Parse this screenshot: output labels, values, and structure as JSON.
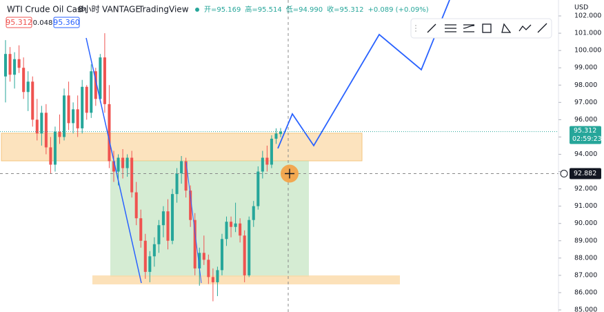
{
  "chart_data": {
    "type": "candlestick",
    "symbol": "WTI Crude Oil Cash",
    "interval": "8小时",
    "broker": "VANTAGE",
    "platform": "TradingView",
    "ohlc_text": [
      "开=95.169",
      "高=95.514",
      "低=94.990",
      "收=95.312",
      "+0.089 (+0.09%)"
    ],
    "bid": "95.312",
    "spread": "0.048",
    "ask": "95.360",
    "currency": "USD",
    "countdown": "02:59:23",
    "last_price": 95.312,
    "crosshair_price": 92.882,
    "up_color": "#26a69a",
    "down_color": "#ef5350",
    "open": [
      98.5,
      99.8,
      98.6,
      99.5,
      99.0,
      97.6,
      98.2,
      96.0,
      95.2,
      96.4,
      94.4,
      93.4,
      95.3,
      95.0,
      97.4,
      95.8,
      96.6,
      95.5,
      97.9,
      96.4,
      98.8,
      97.2,
      99.6,
      96.9,
      93.6,
      93.0,
      93.8,
      93.2,
      93.8,
      91.8,
      90.3,
      89.0,
      87.2,
      88.1,
      88.8,
      89.9,
      90.7,
      89.0,
      91.7,
      92.9,
      93.6,
      91.9,
      90.2,
      87.4,
      88.3,
      87.9,
      86.9,
      86.6,
      87.3,
      89.1,
      90.1,
      89.8,
      90.0,
      89.3,
      87.0,
      90.2,
      91.0,
      93.0,
      93.8,
      93.4,
      94.9,
      95.169
    ],
    "high": [
      100.6,
      100.2,
      99.9,
      100.3,
      99.6,
      98.8,
      98.5,
      97.2,
      96.8,
      96.9,
      95.0,
      95.6,
      96.3,
      97.8,
      98.2,
      97.0,
      97.4,
      98.3,
      98.0,
      99.2,
      99.0,
      99.8,
      101.0,
      98.0,
      94.2,
      94.0,
      94.3,
      94.0,
      94.2,
      92.4,
      90.8,
      89.4,
      88.4,
      89.2,
      90.2,
      91.0,
      91.4,
      92.0,
      93.2,
      93.9,
      93.8,
      92.2,
      90.6,
      88.6,
      89.3,
      88.2,
      87.4,
      87.5,
      89.4,
      90.4,
      90.4,
      91.2,
      90.3,
      89.6,
      90.4,
      91.3,
      93.3,
      94.2,
      94.5,
      95.1,
      95.5,
      95.514
    ],
    "low": [
      97.0,
      98.2,
      97.8,
      98.7,
      97.2,
      96.5,
      95.6,
      94.8,
      94.5,
      94.0,
      92.9,
      93.0,
      94.6,
      94.8,
      95.4,
      95.2,
      95.0,
      95.2,
      96.0,
      96.1,
      96.8,
      97.0,
      96.4,
      93.2,
      92.4,
      92.2,
      92.6,
      92.7,
      91.5,
      89.9,
      88.6,
      86.8,
      86.6,
      87.5,
      88.3,
      89.2,
      88.5,
      88.8,
      91.2,
      92.3,
      91.5,
      89.8,
      87.0,
      86.4,
      87.6,
      86.5,
      85.5,
      85.8,
      87.0,
      88.7,
      89.2,
      89.5,
      88.9,
      86.6,
      86.9,
      89.8,
      90.8,
      92.6,
      93.0,
      93.2,
      94.6,
      94.99
    ],
    "close": [
      99.8,
      98.6,
      99.5,
      99.0,
      97.6,
      98.2,
      96.0,
      95.2,
      96.4,
      94.4,
      93.4,
      95.3,
      95.0,
      97.4,
      95.8,
      96.6,
      95.5,
      97.9,
      96.4,
      98.8,
      97.2,
      99.6,
      96.9,
      93.6,
      93.0,
      93.8,
      93.2,
      93.8,
      91.8,
      90.3,
      89.0,
      87.2,
      88.1,
      88.8,
      89.9,
      90.7,
      89.0,
      91.7,
      92.9,
      93.6,
      91.9,
      90.2,
      87.4,
      88.3,
      87.9,
      86.9,
      86.6,
      87.3,
      89.1,
      90.1,
      89.8,
      90.0,
      89.3,
      87.0,
      90.2,
      91.0,
      93.0,
      93.8,
      93.4,
      94.9,
      95.2,
      95.312
    ],
    "ylim": [
      84.88,
      102.92
    ],
    "yticks": [
      {
        "value": 85,
        "label": "85.000"
      },
      {
        "value": 86,
        "label": "86.000"
      },
      {
        "value": 87,
        "label": "87.000"
      },
      {
        "value": 88,
        "label": "88.000"
      },
      {
        "value": 89,
        "label": "89.000"
      },
      {
        "value": 90,
        "label": "90.000"
      },
      {
        "value": 91,
        "label": "91.000"
      },
      {
        "value": 92,
        "label": "92.000"
      },
      {
        "value": 93,
        "label": "93.000"
      },
      {
        "value": 94,
        "label": "94.000"
      },
      {
        "value": 95,
        "label": "95.000"
      },
      {
        "value": 96,
        "label": "96.000"
      },
      {
        "value": 97,
        "label": "97.000"
      },
      {
        "value": 98,
        "label": "98.000"
      },
      {
        "value": 99,
        "label": "99.000"
      },
      {
        "value": 100,
        "label": "100.000"
      },
      {
        "value": 101,
        "label": "101.000"
      },
      {
        "value": 102,
        "label": "102.000"
      }
    ]
  }
}
